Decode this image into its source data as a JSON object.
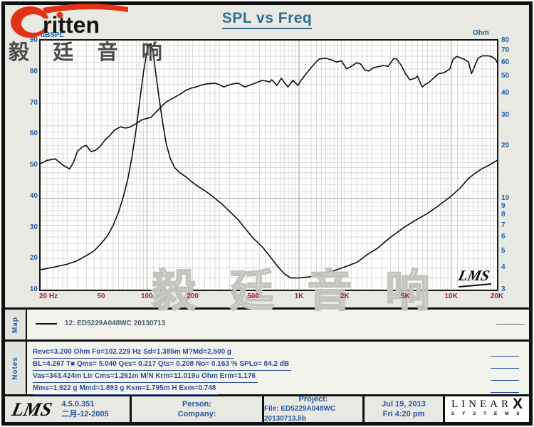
{
  "brand": {
    "logo_text": "ritten",
    "cjk_logo": "毅 廷 音 响",
    "swoosh_color": "#e23317"
  },
  "title": "SPL vs Freq",
  "watermark_text": "毅 廷 音 响",
  "plot_corner_logo": "LMS",
  "chart_data": {
    "type": "line",
    "title": "SPL vs Freq",
    "grid": "log-log frequency grid, gray minor lines",
    "x_axis": {
      "label": "Hz",
      "scale": "log",
      "min": 20,
      "max": 20000,
      "ticks": [
        "20 Hz",
        "50",
        "100",
        "200",
        "500",
        "1K",
        "2K",
        "5K",
        "10K",
        "20K"
      ],
      "tick_values": [
        20,
        50,
        100,
        200,
        500,
        1000,
        2000,
        5000,
        10000,
        20000
      ]
    },
    "y_left": {
      "label": "dBSPL",
      "scale": "linear",
      "min": 10,
      "max": 90,
      "ticks": [
        90,
        80,
        70,
        60,
        50,
        40,
        30,
        20,
        10
      ]
    },
    "y_right": {
      "label": "Ohm",
      "scale": "log",
      "min": 3,
      "max": 80,
      "ticks": [
        80,
        70,
        60,
        50,
        40,
        30,
        20,
        10,
        9,
        8,
        7,
        6,
        5,
        4,
        3
      ]
    },
    "series": [
      {
        "id": "spl-curve",
        "name": "SPL (dBSPL) — 12: ED5229A048WC 20130713",
        "axis": "left",
        "points": [
          [
            20,
            50.5
          ],
          [
            22,
            51.5
          ],
          [
            25,
            52
          ],
          [
            28,
            50
          ],
          [
            31,
            48.8
          ],
          [
            33,
            51
          ],
          [
            35,
            54.5
          ],
          [
            38,
            56
          ],
          [
            40,
            56.3
          ],
          [
            43,
            54.3
          ],
          [
            46,
            54.8
          ],
          [
            49,
            55.9
          ],
          [
            53,
            58
          ],
          [
            57,
            59.5
          ],
          [
            61,
            61.2
          ],
          [
            67,
            62.3
          ],
          [
            72,
            61.9
          ],
          [
            76,
            62.1
          ],
          [
            80,
            62.6
          ],
          [
            86,
            63.5
          ],
          [
            93,
            64.6
          ],
          [
            100,
            65
          ],
          [
            106,
            65.3
          ],
          [
            112,
            66.5
          ],
          [
            120,
            68
          ],
          [
            127,
            69.2
          ],
          [
            134,
            70.3
          ],
          [
            145,
            71.2
          ],
          [
            156,
            72.1
          ],
          [
            168,
            73
          ],
          [
            180,
            74
          ],
          [
            195,
            74.7
          ],
          [
            210,
            75.1
          ],
          [
            225,
            75.6
          ],
          [
            241,
            76
          ],
          [
            260,
            76.2
          ],
          [
            280,
            76.3
          ],
          [
            300,
            75.8
          ],
          [
            320,
            75.1
          ],
          [
            340,
            75.6
          ],
          [
            360,
            76
          ],
          [
            380,
            76.2
          ],
          [
            400,
            76.3
          ],
          [
            420,
            75.6
          ],
          [
            441,
            75.1
          ],
          [
            465,
            75.5
          ],
          [
            495,
            76
          ],
          [
            530,
            76.6
          ],
          [
            575,
            77.2
          ],
          [
            610,
            77
          ],
          [
            640,
            76.7
          ],
          [
            660,
            77.4
          ],
          [
            685,
            76.6
          ],
          [
            715,
            75.6
          ],
          [
            765,
            77.9
          ],
          [
            800,
            76.5
          ],
          [
            845,
            75.1
          ],
          [
            910,
            77.2
          ],
          [
            950,
            76.3
          ],
          [
            985,
            75.6
          ],
          [
            1040,
            77.5
          ],
          [
            1100,
            79
          ],
          [
            1200,
            81.3
          ],
          [
            1290,
            83
          ],
          [
            1360,
            84.1
          ],
          [
            1500,
            84.3
          ],
          [
            1630,
            83.8
          ],
          [
            1770,
            83.1
          ],
          [
            1900,
            83.5
          ],
          [
            2050,
            80.9
          ],
          [
            2200,
            81.7
          ],
          [
            2400,
            82.9
          ],
          [
            2550,
            82.4
          ],
          [
            2700,
            80.6
          ],
          [
            2860,
            80.2
          ],
          [
            3100,
            81.3
          ],
          [
            3350,
            81.7
          ],
          [
            3600,
            82
          ],
          [
            3850,
            81.7
          ],
          [
            4200,
            84.3
          ],
          [
            4400,
            84
          ],
          [
            4700,
            82
          ],
          [
            5000,
            79.4
          ],
          [
            5350,
            77.4
          ],
          [
            5800,
            77.9
          ],
          [
            6000,
            78.6
          ],
          [
            6200,
            77
          ],
          [
            6450,
            75.1
          ],
          [
            6800,
            76
          ],
          [
            7200,
            76.7
          ],
          [
            7800,
            78.3
          ],
          [
            8300,
            79.4
          ],
          [
            9000,
            79.7
          ],
          [
            9800,
            80.9
          ],
          [
            10300,
            84
          ],
          [
            10900,
            84.9
          ],
          [
            11700,
            84.3
          ],
          [
            12200,
            84
          ],
          [
            13000,
            83.1
          ],
          [
            13600,
            79.4
          ],
          [
            14200,
            81.5
          ],
          [
            15000,
            84.3
          ],
          [
            16000,
            85.1
          ],
          [
            17400,
            85.1
          ],
          [
            18300,
            84.9
          ],
          [
            19600,
            84
          ],
          [
            20000,
            82.9
          ]
        ]
      },
      {
        "id": "impedance-curve",
        "name": "Impedance (Ohm)",
        "axis": "right",
        "points": [
          [
            20,
            3.9
          ],
          [
            25,
            4.05
          ],
          [
            30,
            4.2
          ],
          [
            35,
            4.4
          ],
          [
            40,
            4.7
          ],
          [
            45,
            5
          ],
          [
            50,
            5.5
          ],
          [
            55,
            6.1
          ],
          [
            60,
            7
          ],
          [
            65,
            8.3
          ],
          [
            70,
            10.2
          ],
          [
            75,
            13
          ],
          [
            80,
            17.5
          ],
          [
            85,
            25
          ],
          [
            90,
            37
          ],
          [
            95,
            53
          ],
          [
            100,
            69
          ],
          [
            103,
            75.5
          ],
          [
            106,
            77
          ],
          [
            110,
            68
          ],
          [
            115,
            50
          ],
          [
            120,
            38
          ],
          [
            127,
            27
          ],
          [
            134,
            20.5
          ],
          [
            142,
            17
          ],
          [
            152,
            15
          ],
          [
            165,
            14
          ],
          [
            180,
            13.3
          ],
          [
            200,
            12.3
          ],
          [
            220,
            11.6
          ],
          [
            250,
            10.8
          ],
          [
            280,
            10
          ],
          [
            310,
            9.3
          ],
          [
            350,
            8.4
          ],
          [
            400,
            7.5
          ],
          [
            450,
            6.6
          ],
          [
            500,
            5.9
          ],
          [
            570,
            5.3
          ],
          [
            650,
            4.6
          ],
          [
            720,
            4.1
          ],
          [
            800,
            3.7
          ],
          [
            880,
            3.5
          ],
          [
            1000,
            3.5
          ],
          [
            1170,
            3.55
          ],
          [
            1400,
            3.7
          ],
          [
            1700,
            3.85
          ],
          [
            2000,
            4.05
          ],
          [
            2400,
            4.3
          ],
          [
            2800,
            4.75
          ],
          [
            3300,
            5.2
          ],
          [
            4000,
            6
          ],
          [
            5000,
            6.9
          ],
          [
            6000,
            7.6
          ],
          [
            7000,
            8.2
          ],
          [
            8000,
            8.9
          ],
          [
            9000,
            9.6
          ],
          [
            10000,
            10.3
          ],
          [
            11500,
            11.5
          ],
          [
            13000,
            13
          ],
          [
            14500,
            14
          ],
          [
            16000,
            14.8
          ],
          [
            18000,
            15.6
          ],
          [
            20000,
            16.5
          ]
        ]
      }
    ]
  },
  "map": {
    "label": "Map",
    "legend": "12: ED5229A048WC  20130713"
  },
  "notes": {
    "label": "Notes",
    "lines": [
      "Revc=3.200 Ohm  Fo=102.229 Hz  Sd=1.385m M?Md=2.500 g",
      "BL=4.267 T■  Qms= 5.040  Qes= 0.217  Qts= 0.208  No= 0.163 %  SPLo= 84.2 dB",
      "Vas=343.424m Ltr  Cms=1.261m M/N  Krm=11.019u Ohm  Erm=1.176",
      "Mms=1.922 g  Mmd=1.893 g  Kxm=1.795m H  Exm=0.748"
    ]
  },
  "footer": {
    "lms_logo": "LMS",
    "version": "4.5.0.351",
    "version_date": "二月-12-2005",
    "person_label": "Person:",
    "company_label": "Company:",
    "project_label": "Project:",
    "file_label": "File: ED5229A048WC  20130713.lib",
    "date": "Jul 19, 2013",
    "time": "Fri  4:20 pm",
    "linearx": {
      "name": "LINEAR",
      "x": "X",
      "sub": "S Y S T E M S"
    }
  }
}
